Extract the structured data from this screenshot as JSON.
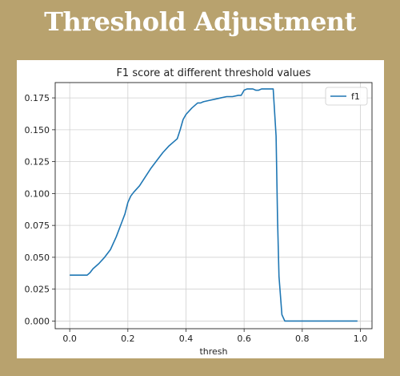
{
  "slide": {
    "title": "Threshold Adjustment"
  },
  "chart_data": {
    "type": "line",
    "title": "F1 score at different threshold values",
    "xlabel": "thresh",
    "ylabel": "",
    "xlim": [
      -0.05,
      1.04
    ],
    "ylim": [
      -0.006,
      0.187
    ],
    "xticks": [
      0.0,
      0.2,
      0.4,
      0.6,
      0.8,
      1.0
    ],
    "xtick_labels": [
      "0.0",
      "0.2",
      "0.4",
      "0.6",
      "0.8",
      "1.0"
    ],
    "yticks": [
      0.0,
      0.025,
      0.05,
      0.075,
      0.1,
      0.125,
      0.15,
      0.175
    ],
    "ytick_labels": [
      "0.000",
      "0.025",
      "0.050",
      "0.075",
      "0.100",
      "0.125",
      "0.150",
      "0.175"
    ],
    "grid": true,
    "legend_position": "top-right",
    "color": "#1f77b4",
    "series": [
      {
        "name": "f1",
        "x": [
          0.0,
          0.02,
          0.04,
          0.06,
          0.07,
          0.08,
          0.1,
          0.12,
          0.14,
          0.16,
          0.18,
          0.19,
          0.2,
          0.21,
          0.22,
          0.24,
          0.26,
          0.28,
          0.3,
          0.32,
          0.34,
          0.36,
          0.37,
          0.38,
          0.39,
          0.4,
          0.42,
          0.44,
          0.45,
          0.46,
          0.48,
          0.5,
          0.52,
          0.54,
          0.56,
          0.58,
          0.59,
          0.6,
          0.61,
          0.62,
          0.63,
          0.64,
          0.65,
          0.66,
          0.67,
          0.68,
          0.69,
          0.7,
          0.71,
          0.715,
          0.72,
          0.73,
          0.74,
          0.75,
          0.8,
          0.85,
          0.9,
          0.95,
          0.99
        ],
        "y": [
          0.036,
          0.036,
          0.036,
          0.036,
          0.038,
          0.041,
          0.045,
          0.05,
          0.056,
          0.066,
          0.078,
          0.084,
          0.093,
          0.098,
          0.101,
          0.106,
          0.113,
          0.12,
          0.126,
          0.132,
          0.137,
          0.141,
          0.143,
          0.15,
          0.158,
          0.162,
          0.167,
          0.171,
          0.171,
          0.172,
          0.173,
          0.174,
          0.175,
          0.176,
          0.176,
          0.177,
          0.177,
          0.181,
          0.182,
          0.182,
          0.182,
          0.181,
          0.181,
          0.182,
          0.182,
          0.182,
          0.182,
          0.182,
          0.145,
          0.08,
          0.035,
          0.005,
          0.0,
          0.0,
          0.0,
          0.0,
          0.0,
          0.0,
          0.0
        ]
      }
    ]
  }
}
